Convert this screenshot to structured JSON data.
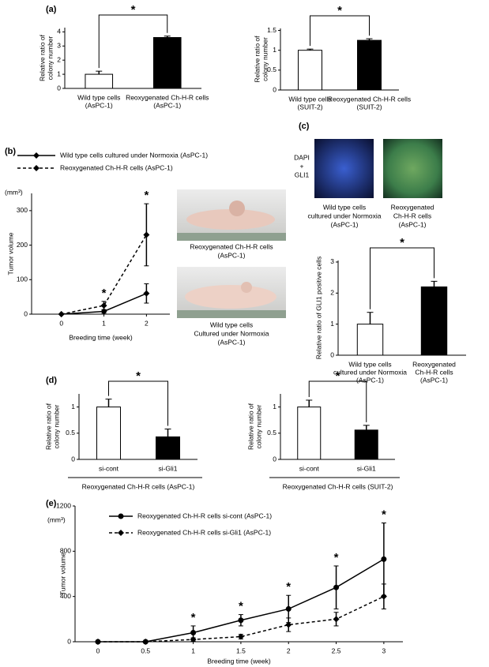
{
  "chart_data": [
    {
      "type": "bar",
      "panel": "(a)",
      "categories": [
        [
          "Wild type cells",
          "(AsPC-1)"
        ],
        [
          "Reoxygenated Ch-H-R cells",
          "(AsPC-1)"
        ]
      ],
      "values": [
        1,
        3.6
      ],
      "errors": [
        0.22,
        0.1
      ],
      "colors": [
        "#ffffff",
        "#000000"
      ],
      "ylabel": [
        "Relative ratio of",
        "colony number"
      ],
      "ylim": [
        0,
        4.3
      ],
      "yticks": [
        0,
        1,
        2,
        3,
        4
      ],
      "significance": "*"
    },
    {
      "type": "bar",
      "categories": [
        [
          "Wild type cells",
          "(SUIT-2)"
        ],
        [
          "Reoxygenated Ch-H-R cells",
          "(SUIT-2)"
        ]
      ],
      "values": [
        1,
        1.25
      ],
      "errors": [
        0.03,
        0.04
      ],
      "colors": [
        "#ffffff",
        "#000000"
      ],
      "ylabel": [
        "Relative ratio of",
        "colony number"
      ],
      "ylim": [
        0,
        1.55
      ],
      "yticks": [
        0,
        0.5,
        1,
        1.5
      ],
      "significance": "*"
    },
    {
      "type": "line",
      "panel": "(b)",
      "x": [
        0,
        1,
        2
      ],
      "xlim": [
        -0.7,
        2.55
      ],
      "xticks": [
        0,
        1,
        2
      ],
      "ylim": [
        0,
        350
      ],
      "yticks": [
        0,
        100,
        200,
        300
      ],
      "series": [
        {
          "name": "Wild type cells cultured under Normoxia (AsPC-1)",
          "color": "#000000",
          "marker": "diamond",
          "dashed": false,
          "values": [
            0,
            8,
            60
          ],
          "errors": [
            0,
            5,
            28
          ]
        },
        {
          "name": "Reoxygenated Ch-H-R cells (AsPC-1)",
          "color": "#000000",
          "marker": "diamond",
          "dashed": true,
          "values": [
            0,
            25,
            230
          ],
          "errors": [
            0,
            12,
            90
          ]
        }
      ],
      "ylabel": [
        "Tumor volume"
      ],
      "unit_label": "(mm³)",
      "xlabel": "Breeding time (week)",
      "annotations": [
        {
          "x": 1,
          "text": "*"
        },
        {
          "x": 2,
          "text": "*"
        }
      ],
      "photo_captions": [
        [
          "Reoxygenated Ch-H-R cells",
          "(AsPC-1)"
        ],
        [
          "Wild type cells",
          "Cultured under Normoxia",
          "(AsPC-1)"
        ]
      ]
    },
    {
      "type": "bar",
      "panel": "(c)",
      "categories": [
        [
          "Wild type cells",
          "cultured under Normoxia",
          "(AsPC-1)"
        ],
        [
          "Reoxygenated",
          "Ch-H-R cells",
          "(AsPC-1)"
        ]
      ],
      "values": [
        1,
        2.2
      ],
      "errors": [
        0.38,
        0.18
      ],
      "colors": [
        "#ffffff",
        "#000000"
      ],
      "ylabel": [
        "Relative ratio of GLI1 positive cells"
      ],
      "ylim": [
        0,
        3.05
      ],
      "yticks": [
        0,
        1,
        2,
        3
      ],
      "significance": "*",
      "image_label": [
        "DAPI",
        "+",
        "GLI1"
      ],
      "image_captions": [
        [
          "Wild type cells",
          "cultured under Normoxia",
          "(AsPC-1)"
        ],
        [
          "Reoxygenated",
          "Ch-H-R cells",
          "(AsPC-1)"
        ]
      ]
    },
    {
      "type": "bar",
      "panel": "(d)",
      "categories": [
        [
          "si-cont"
        ],
        [
          "si-Gli1"
        ]
      ],
      "values": [
        1,
        0.43
      ],
      "errors": [
        0.15,
        0.15
      ],
      "colors": [
        "#ffffff",
        "#000000"
      ],
      "ylabel": [
        "Relative ratio of",
        "colony number"
      ],
      "ylim": [
        0,
        1.25
      ],
      "yticks": [
        0,
        0.5,
        1
      ],
      "significance": "*",
      "group_label": "Reoxygenated Ch-H-R cells (AsPC-1)"
    },
    {
      "type": "bar",
      "categories": [
        [
          "si-cont"
        ],
        [
          "si-Gli1"
        ]
      ],
      "values": [
        1,
        0.56
      ],
      "errors": [
        0.13,
        0.09
      ],
      "colors": [
        "#ffffff",
        "#000000"
      ],
      "ylabel": [
        "Relative ratio of",
        "colony number"
      ],
      "ylim": [
        0,
        1.25
      ],
      "yticks": [
        0,
        0.5,
        1
      ],
      "significance": "*",
      "group_label": "Reoxygenated Ch-H-R cells (SUIT-2)"
    },
    {
      "type": "line",
      "panel": "(e)",
      "x": [
        0,
        0.5,
        1,
        1.5,
        2,
        2.5,
        3
      ],
      "xlim": [
        -0.24,
        3.2
      ],
      "xticks": [
        0,
        0.5,
        1,
        1.5,
        2,
        2.5,
        3
      ],
      "ylim": [
        0,
        1200
      ],
      "yticks": [
        0,
        400,
        800,
        1200
      ],
      "series": [
        {
          "name": "Reoxygenated Ch-H-R cells si-cont (AsPC-1)",
          "color": "#000000",
          "marker": "circle",
          "dashed": false,
          "values": [
            0,
            0,
            80,
            190,
            290,
            480,
            730
          ],
          "errors": [
            0,
            0,
            60,
            50,
            120,
            190,
            320
          ]
        },
        {
          "name": "Reoxygenated Ch-H-R cells si-Gli1 (AsPC-1)",
          "color": "#000000",
          "marker": "diamond",
          "dashed": true,
          "values": [
            0,
            0,
            20,
            45,
            150,
            200,
            400
          ],
          "errors": [
            0,
            0,
            15,
            20,
            60,
            60,
            110
          ]
        }
      ],
      "ylabel": [
        "Tumor volume"
      ],
      "unit_label": "(mm³)",
      "xlabel": "Breeding time (week)",
      "annotations": [
        {
          "x": 1,
          "text": "*"
        },
        {
          "x": 1.5,
          "text": "*"
        },
        {
          "x": 2,
          "text": "*"
        },
        {
          "x": 2.5,
          "text": "*"
        },
        {
          "x": 3,
          "text": "*"
        }
      ]
    }
  ]
}
